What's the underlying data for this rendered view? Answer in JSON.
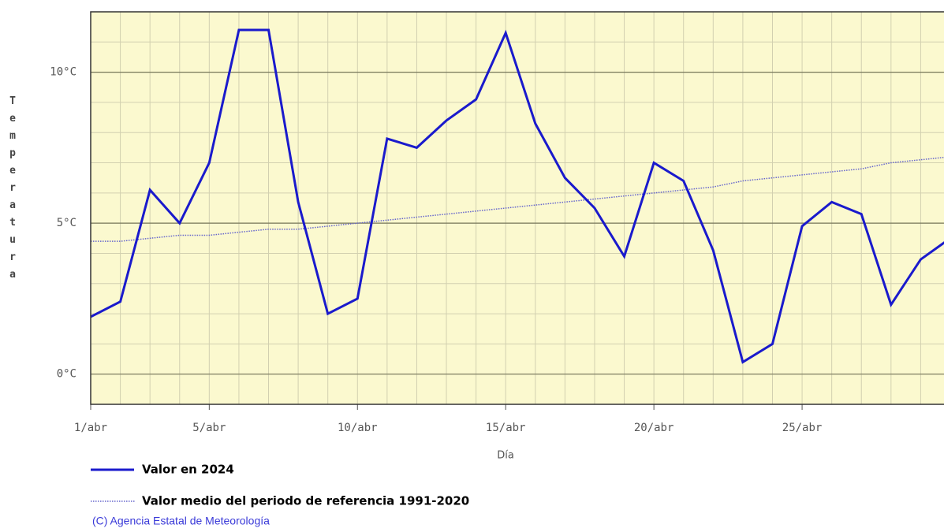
{
  "chart_data": {
    "type": "line",
    "y_label": "Temperatura",
    "x_label": "Día",
    "credit": "(C) Agencia Estatal de Meteorología",
    "x": [
      1,
      2,
      3,
      4,
      5,
      6,
      7,
      8,
      9,
      10,
      11,
      12,
      13,
      14,
      15,
      16,
      17,
      18,
      19,
      20,
      21,
      22,
      23,
      24,
      25,
      26,
      27,
      28,
      29,
      30
    ],
    "xlim": [
      1,
      30
    ],
    "xticks": [
      {
        "value": 1,
        "label": "1/abr"
      },
      {
        "value": 5,
        "label": "5/abr"
      },
      {
        "value": 10,
        "label": "10/abr"
      },
      {
        "value": 15,
        "label": "15/abr"
      },
      {
        "value": 20,
        "label": "20/abr"
      },
      {
        "value": 25,
        "label": "25/abr"
      }
    ],
    "ylim": [
      -1,
      12
    ],
    "yticks": [
      {
        "value": 0,
        "label": "0°C"
      },
      {
        "value": 5,
        "label": "5°C"
      },
      {
        "value": 10,
        "label": "10°C"
      }
    ],
    "grid": true,
    "series": [
      {
        "name": "Valor en 2024",
        "color": "#1a1acc",
        "style": "solid",
        "values": [
          1.9,
          2.4,
          6.1,
          5.0,
          7.0,
          11.4,
          11.4,
          5.7,
          2.0,
          2.5,
          7.8,
          7.5,
          8.4,
          9.1,
          11.3,
          8.3,
          6.5,
          5.5,
          3.9,
          7.0,
          6.4,
          4.1,
          0.4,
          1.0,
          4.9,
          5.7,
          5.3,
          2.3,
          3.8,
          4.5
        ]
      },
      {
        "name": "Valor medio del periodo de referencia 1991-2020",
        "color": "#6666cc",
        "style": "dotted",
        "values": [
          4.4,
          4.4,
          4.5,
          4.6,
          4.6,
          4.7,
          4.8,
          4.8,
          4.9,
          5.0,
          5.1,
          5.2,
          5.3,
          5.4,
          5.5,
          5.6,
          5.7,
          5.8,
          5.9,
          6.0,
          6.1,
          6.2,
          6.4,
          6.5,
          6.6,
          6.7,
          6.8,
          7.0,
          7.1,
          7.2
        ]
      }
    ]
  }
}
